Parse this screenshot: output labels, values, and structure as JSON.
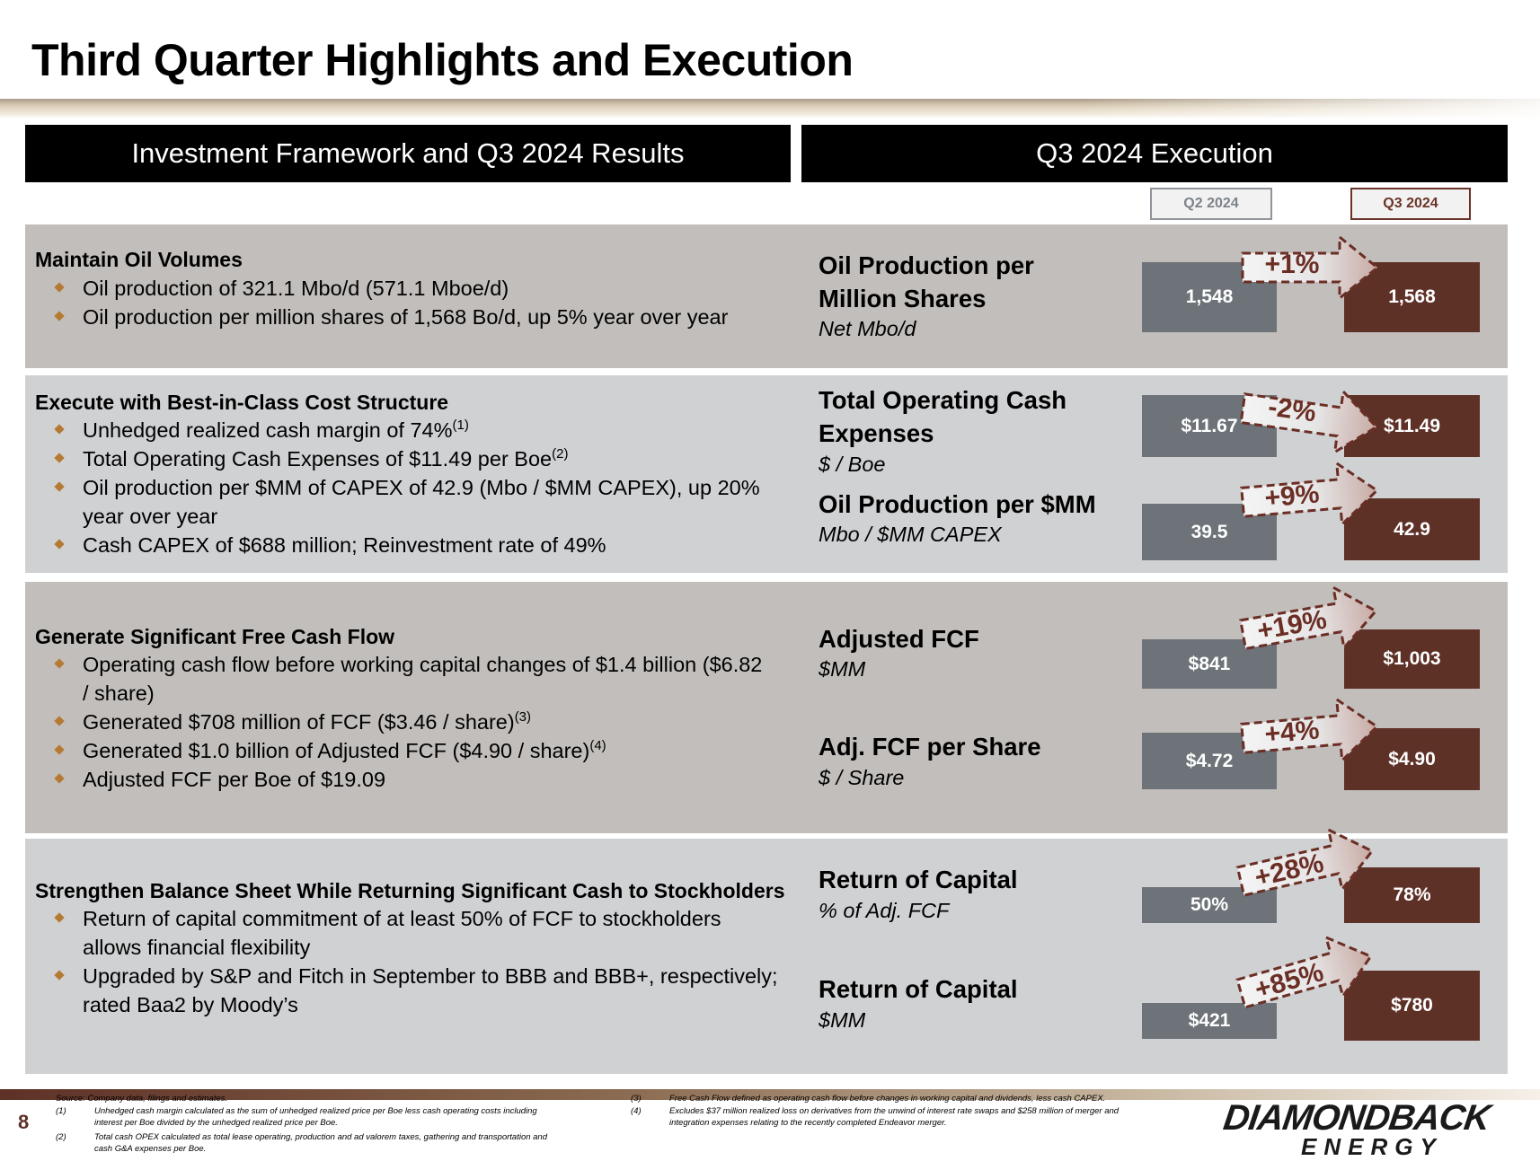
{
  "title": "Third Quarter Highlights and Execution",
  "left_header": "Investment Framework and Q3 2024 Results",
  "right_header": "Q3 2024 Execution",
  "period_tags": {
    "q2": "Q2 2024",
    "q3": "Q3 2024"
  },
  "sections": [
    {
      "title": "Maintain Oil Volumes",
      "bullets": [
        {
          "text": "Oil production of 321.1 Mbo/d (571.1 Mboe/d)",
          "sup": ""
        },
        {
          "text": "Oil production per million shares of 1,568 Bo/d, up 5% year over year",
          "sup": ""
        }
      ]
    },
    {
      "title": "Execute with Best-in-Class Cost Structure",
      "bullets": [
        {
          "text": "Unhedged realized cash margin of 74%",
          "sup": "(1)"
        },
        {
          "text": "Total Operating Cash Expenses of $11.49 per Boe",
          "sup": "(2)"
        },
        {
          "text": "Oil production per $MM of CAPEX of 42.9 (Mbo / $MM CAPEX), up 20%",
          "cont": "year over year",
          "sup": ""
        },
        {
          "text": "Cash CAPEX of $688 million; Reinvestment rate of 49%",
          "sup": ""
        }
      ]
    },
    {
      "title": "Generate Significant Free Cash Flow",
      "bullets": [
        {
          "text": "Operating cash flow before working capital changes of $1.4 billion ($6.82",
          "cont": "/ share)",
          "sup": ""
        },
        {
          "text": "Generated $708 million of FCF ($3.46 / share)",
          "sup": "(3)"
        },
        {
          "text": "Generated $1.0 billion of Adjusted FCF ($4.90 / share)",
          "sup": "(4)"
        },
        {
          "text": "Adjusted FCF per Boe of $19.09",
          "sup": ""
        }
      ]
    },
    {
      "title": "Strengthen Balance Sheet While Returning Significant Cash to Stockholders",
      "bullets": [
        {
          "text": "Return of capital commitment of at least 50% of FCF to stockholders",
          "cont": "allows financial flexibility",
          "sup": ""
        },
        {
          "text": "Upgraded by S&P and Fitch in September to BBB and BBB+, respectively;",
          "cont": "rated Baa2 by Moody’s",
          "sup": ""
        }
      ]
    }
  ],
  "metrics": [
    {
      "label1": "Oil Production per",
      "label2": "Million Shares",
      "unit": "Net Mbo/d",
      "q2": "1,548",
      "q3": "1,568",
      "q2_value": 1548,
      "q3_value": 1568,
      "change": "+1%"
    },
    {
      "label1": "Total Operating Cash",
      "label2": "Expenses",
      "unit": "$ / Boe",
      "q2": "$11.67",
      "q3": "$11.49",
      "q2_value": 11.67,
      "q3_value": 11.49,
      "change": "-2%"
    },
    {
      "label1": "Oil Production per $MM",
      "label2": "",
      "unit": "Mbo  / $MM CAPEX",
      "q2": "39.5",
      "q3": "42.9",
      "q2_value": 39.5,
      "q3_value": 42.9,
      "change": "+9%"
    },
    {
      "label1": "Adjusted FCF",
      "label2": "",
      "unit": "$MM",
      "q2": "$841",
      "q3": "$1,003",
      "q2_value": 841,
      "q3_value": 1003,
      "change": "+19%"
    },
    {
      "label1": "Adj. FCF per Share",
      "label2": "",
      "unit": "$ / Share",
      "q2": "$4.72",
      "q3": "$4.90",
      "q2_value": 4.72,
      "q3_value": 4.9,
      "change": "+4%"
    },
    {
      "label1": "Return of Capital",
      "label2": "",
      "unit": "% of Adj. FCF",
      "q2": "50%",
      "q3": "78%",
      "q2_value": 50,
      "q3_value": 78,
      "change": "+28%"
    },
    {
      "label1": "Return of Capital",
      "label2": "",
      "unit": "$MM",
      "q2": "$421",
      "q3": "$780",
      "q2_value": 421,
      "q3_value": 780,
      "change": "+85%"
    }
  ],
  "footnotes": {
    "source": "Source: Company data, filings and estimates.",
    "n1_num": "(1)",
    "n1a": "Unhedged cash margin calculated as the sum of unhedged realized price per Boe less cash operating costs including",
    "n1b": "interest per Boe divided by the unhedged realized price per Boe.",
    "n2_num": "(2)",
    "n2a": "Total cash OPEX calculated as total lease operating, production and ad valorem taxes, gathering and transportation and",
    "n2b": "cash G&A expenses per Boe.",
    "n3_num": "(3)",
    "n3": "Free Cash Flow defined as operating cash flow before changes in working capital and dividends, less cash CAPEX.",
    "n4_num": "(4)",
    "n4a": "Excludes $37 million realized loss on derivatives from the unwind of interest rate swaps and $258 million of merger and",
    "n4b": "integration expenses relating to the recently completed Endeavor merger."
  },
  "page_number": "8",
  "logo": {
    "line1": "DIAMONDBACK",
    "line2": "ENERGY"
  },
  "colors": {
    "q2_bar": "#6d7378",
    "q3_bar": "#5e3127",
    "bullet": "#b57a32",
    "change_text": "#6b2e25"
  }
}
